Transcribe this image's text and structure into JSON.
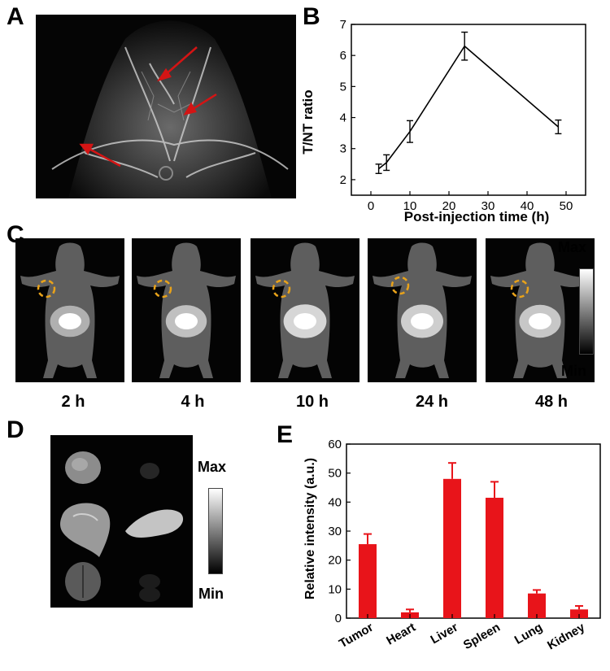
{
  "panels": {
    "a": "A",
    "b": "B",
    "c": "C",
    "d": "D",
    "e": "E"
  },
  "colors": {
    "bar": "#e8141a",
    "arrow": "#d41414",
    "roi": "#e8a21a"
  },
  "panelC": {
    "timepoints": [
      "2 h",
      "4 h",
      "10 h",
      "24 h",
      "48 h"
    ],
    "scale_max": "Max",
    "scale_min": "Min"
  },
  "panelD": {
    "scale_max": "Max",
    "scale_min": "Min"
  },
  "chart_data": [
    {
      "type": "line",
      "panel": "B",
      "xlabel": "Post-injection time (h)",
      "ylabel": "T/NT ratio",
      "xlim": [
        -5,
        55
      ],
      "ylim": [
        1.5,
        7
      ],
      "xticks": [
        0,
        10,
        20,
        30,
        40,
        50
      ],
      "yticks": [
        2,
        3,
        4,
        5,
        6,
        7
      ],
      "x": [
        2,
        4,
        10,
        24,
        48
      ],
      "y": [
        2.35,
        2.55,
        3.55,
        6.3,
        3.7
      ],
      "err": [
        0.15,
        0.25,
        0.35,
        0.45,
        0.22
      ]
    },
    {
      "type": "bar",
      "panel": "E",
      "ylabel": "Relative intensity (a.u.)",
      "ylim": [
        0,
        60
      ],
      "yticks": [
        0,
        10,
        20,
        30,
        40,
        50,
        60
      ],
      "categories": [
        "Tumor",
        "Heart",
        "Liver",
        "Spleen",
        "Lung",
        "Kidney"
      ],
      "values": [
        25.5,
        2,
        48,
        41.5,
        8.5,
        3
      ],
      "err": [
        3.5,
        1,
        5.5,
        5.5,
        1.2,
        1.2
      ]
    }
  ]
}
